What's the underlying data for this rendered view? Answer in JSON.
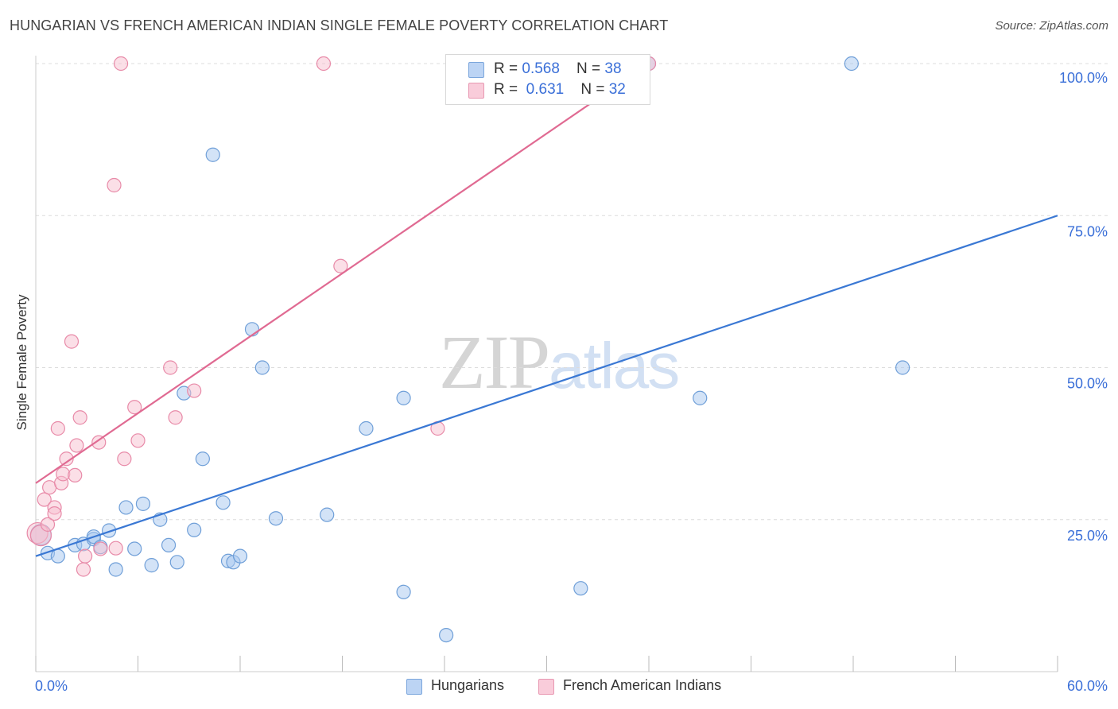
{
  "chart_data": {
    "type": "scatter",
    "title": "HUNGARIAN VS FRENCH AMERICAN INDIAN SINGLE FEMALE POVERTY CORRELATION CHART",
    "source": "Source: ZipAtlas.com",
    "ylabel": "Single Female Poverty",
    "xlim": [
      0,
      60
    ],
    "ylim": [
      0,
      105
    ],
    "x_tick_labels": [
      "0.0%",
      "60.0%"
    ],
    "y_ticks": [
      25,
      50,
      75,
      100
    ],
    "y_tick_labels": [
      "25.0%",
      "50.0%",
      "75.0%",
      "100.0%"
    ],
    "watermark": "ZIPatlas",
    "watermark_parts": {
      "zip": "ZIP",
      "atlas": "atlas"
    },
    "legend": [
      {
        "name": "Hungarians",
        "r_label": "R = ",
        "r": "0.568",
        "n_label": "N = ",
        "n": "38",
        "color": "#a8c8f0",
        "stroke": "#6f9fd8",
        "line": "#3a78d4"
      },
      {
        "name": "French American Indians",
        "r_label": "R = ",
        "r": "0.631",
        "n_label": "N = ",
        "n": "32",
        "color": "#f7c0d0",
        "stroke": "#e88aa8",
        "line": "#e06a92"
      }
    ],
    "series": [
      {
        "name": "Hungarians",
        "points": [
          [
            0.3,
            22.5
          ],
          [
            0.7,
            19.5
          ],
          [
            1.3,
            19.0
          ],
          [
            2.3,
            20.8
          ],
          [
            2.8,
            21.0
          ],
          [
            3.4,
            21.8
          ],
          [
            3.4,
            22.2
          ],
          [
            3.8,
            20.5
          ],
          [
            4.3,
            23.2
          ],
          [
            4.7,
            16.8
          ],
          [
            5.3,
            27.0
          ],
          [
            5.8,
            20.2
          ],
          [
            6.3,
            27.6
          ],
          [
            6.8,
            17.5
          ],
          [
            7.3,
            25.0
          ],
          [
            7.8,
            20.8
          ],
          [
            8.3,
            18.0
          ],
          [
            8.7,
            45.8
          ],
          [
            9.3,
            23.3
          ],
          [
            9.8,
            35.0
          ],
          [
            10.4,
            85.0
          ],
          [
            11.0,
            27.8
          ],
          [
            11.3,
            18.2
          ],
          [
            11.6,
            18.0
          ],
          [
            12.0,
            19.0
          ],
          [
            12.7,
            56.3
          ],
          [
            13.3,
            50.0
          ],
          [
            14.1,
            25.2
          ],
          [
            17.1,
            25.8
          ],
          [
            19.4,
            40.0
          ],
          [
            21.6,
            45.0
          ],
          [
            21.6,
            13.1
          ],
          [
            24.1,
            6.0
          ],
          [
            32.0,
            13.7
          ],
          [
            36.0,
            100.0
          ],
          [
            39.0,
            45.0
          ],
          [
            47.9,
            100.0
          ],
          [
            50.9,
            50.0
          ]
        ]
      },
      {
        "name": "French American Indians",
        "points": [
          [
            0.1,
            22.8
          ],
          [
            0.3,
            22.4
          ],
          [
            0.5,
            28.3
          ],
          [
            0.7,
            24.2
          ],
          [
            0.8,
            30.3
          ],
          [
            1.1,
            27.0
          ],
          [
            1.1,
            26.0
          ],
          [
            1.3,
            40.0
          ],
          [
            1.5,
            31.0
          ],
          [
            1.6,
            32.5
          ],
          [
            1.8,
            35.0
          ],
          [
            2.1,
            54.3
          ],
          [
            2.3,
            32.3
          ],
          [
            2.4,
            37.2
          ],
          [
            2.6,
            41.8
          ],
          [
            2.8,
            16.8
          ],
          [
            2.9,
            19.0
          ],
          [
            3.7,
            37.7
          ],
          [
            3.8,
            20.2
          ],
          [
            4.6,
            80.0
          ],
          [
            4.7,
            20.3
          ],
          [
            5.0,
            100.0
          ],
          [
            5.2,
            35.0
          ],
          [
            5.8,
            43.5
          ],
          [
            6.0,
            38.0
          ],
          [
            7.9,
            50.0
          ],
          [
            8.2,
            41.8
          ],
          [
            9.3,
            46.2
          ],
          [
            16.9,
            100.0
          ],
          [
            17.9,
            66.7
          ],
          [
            23.6,
            40.0
          ],
          [
            36.0,
            100.0
          ]
        ]
      }
    ],
    "trend_lines": [
      {
        "name": "Hungarians",
        "x": [
          0,
          60
        ],
        "y": [
          19.0,
          75.0
        ]
      },
      {
        "name": "French American Indians",
        "x": [
          0,
          36.0
        ],
        "y": [
          31.0,
          100.0
        ]
      }
    ]
  }
}
